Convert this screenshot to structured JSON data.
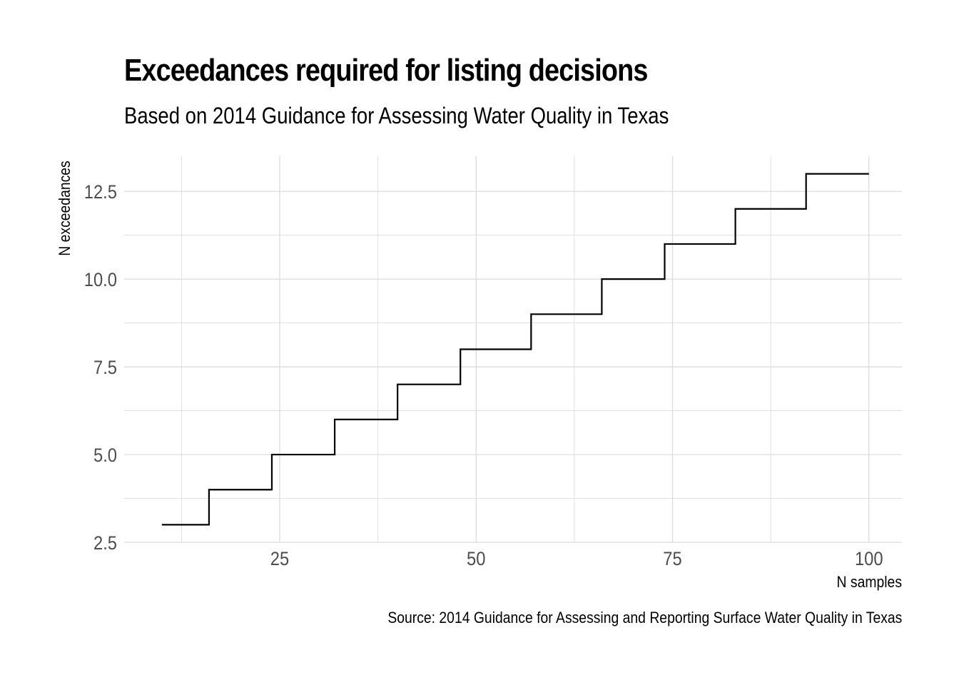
{
  "chart_data": {
    "type": "line",
    "style": "step",
    "title": "Exceedances required for listing decisions",
    "subtitle": "Based on 2014 Guidance for Assessing Water Quality in Texas",
    "caption": "Source: 2014 Guidance for Assessing and Reporting Surface Water Quality in Texas",
    "xlabel": "N samples",
    "ylabel": "N exceedances",
    "xlim": [
      5.2,
      104.2
    ],
    "ylim": [
      2.5,
      13.5
    ],
    "xticks": [
      25,
      50,
      75,
      100
    ],
    "yticks": [
      2.5,
      5.0,
      7.5,
      10.0,
      12.5
    ],
    "ytick_labels": [
      "2.5",
      "5.0",
      "7.5",
      "10.0",
      "12.5"
    ],
    "xtick_labels": [
      "25",
      "50",
      "75",
      "100"
    ],
    "grid": true,
    "line_color": "#000000",
    "grid_color": "#d9d9d9",
    "series": [
      {
        "x": [
          10,
          16,
          24,
          32,
          40,
          48,
          57,
          66,
          74,
          83,
          92,
          100
        ],
        "y": [
          3,
          4,
          5,
          6,
          7,
          8,
          9,
          10,
          11,
          12,
          13,
          13
        ]
      }
    ]
  }
}
